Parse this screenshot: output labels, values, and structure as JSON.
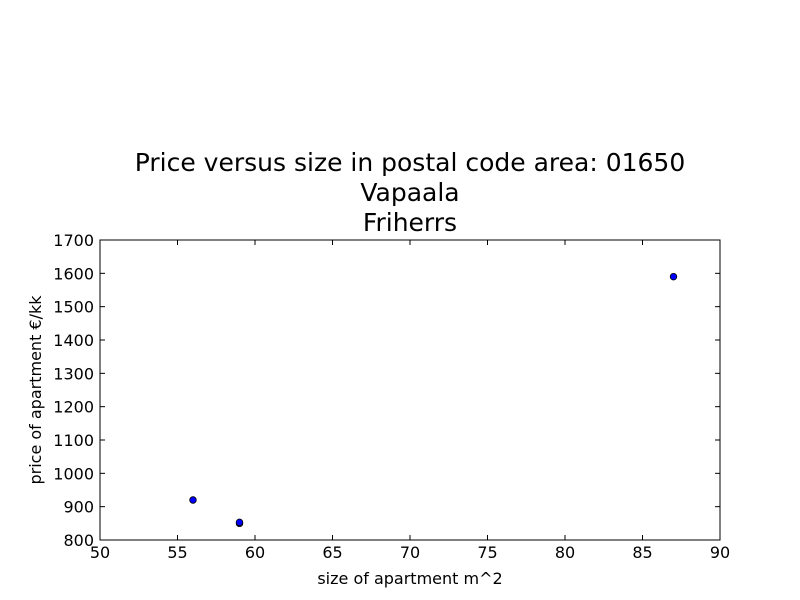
{
  "chart_data": {
    "type": "scatter",
    "title_lines": [
      "Price versus size in postal code area: 01650",
      "Vapaala",
      "Friherrs"
    ],
    "xlabel": "size of apartment m^2",
    "ylabel": "price of apartment €/kk",
    "xlim": [
      50,
      90
    ],
    "ylim": [
      800,
      1700
    ],
    "x_ticks": [
      50,
      55,
      60,
      65,
      70,
      75,
      80,
      85,
      90
    ],
    "y_ticks": [
      800,
      900,
      1000,
      1100,
      1200,
      1300,
      1400,
      1500,
      1600,
      1700
    ],
    "grid": false,
    "marker_color": "#0000ff",
    "points": [
      {
        "x": 56,
        "y": 920
      },
      {
        "x": 59,
        "y": 850
      },
      {
        "x": 59,
        "y": 853
      },
      {
        "x": 87,
        "y": 1590
      }
    ]
  }
}
